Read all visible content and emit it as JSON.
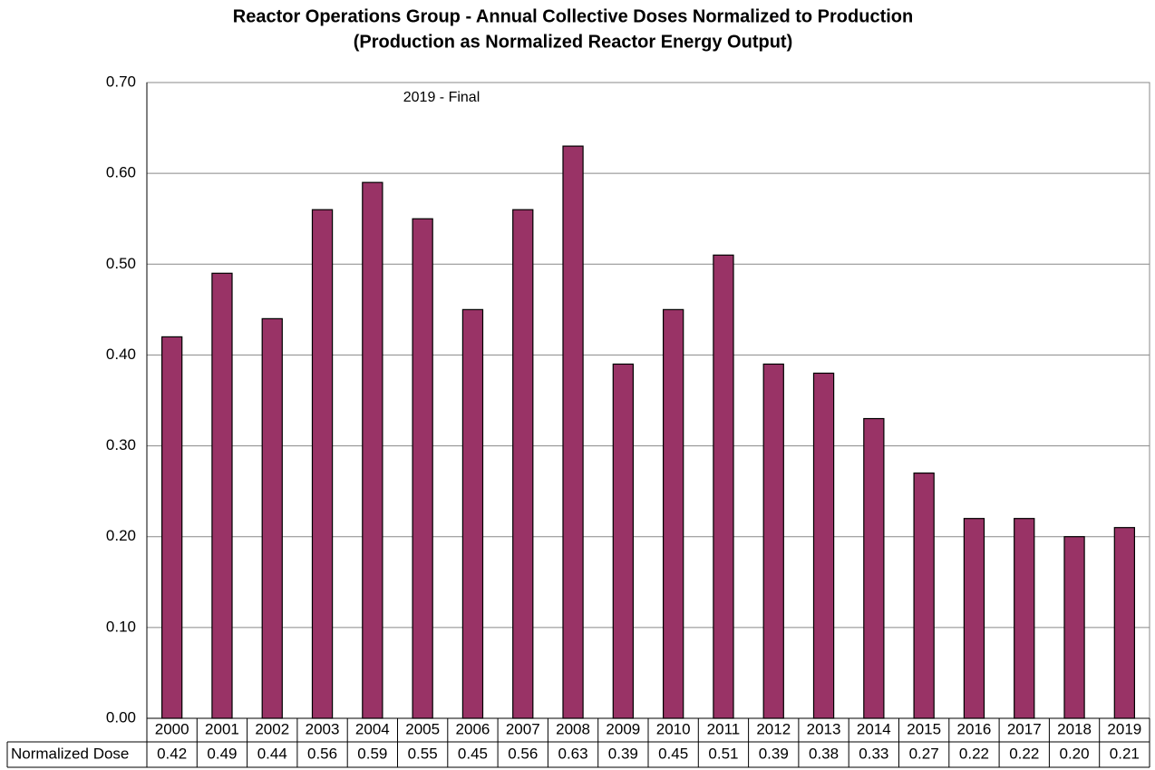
{
  "chart_data": {
    "type": "bar",
    "title": "Reactor Operations Group - Annual Collective Doses Normalized to Production",
    "subtitle": "(Production as Normalized Reactor Energy Output)",
    "annotation": "2019 - Final",
    "categories": [
      "2000",
      "2001",
      "2002",
      "2003",
      "2004",
      "2005",
      "2006",
      "2007",
      "2008",
      "2009",
      "2010",
      "2011",
      "2012",
      "2013",
      "2014",
      "2015",
      "2016",
      "2017",
      "2018",
      "2019"
    ],
    "series": [
      {
        "name": "Normalized Dose",
        "color": "#993366",
        "values": [
          0.42,
          0.49,
          0.44,
          0.56,
          0.59,
          0.55,
          0.45,
          0.56,
          0.63,
          0.39,
          0.45,
          0.51,
          0.39,
          0.38,
          0.33,
          0.27,
          0.22,
          0.22,
          0.2,
          0.21
        ],
        "value_labels": [
          "0.42",
          "0.49",
          "0.44",
          "0.56",
          "0.59",
          "0.55",
          "0.45",
          "0.56",
          "0.63",
          "0.39",
          "0.45",
          "0.51",
          "0.39",
          "0.38",
          "0.33",
          "0.27",
          "0.22",
          "0.22",
          "0.20",
          "0.21"
        ]
      }
    ],
    "ylim": [
      0,
      0.7
    ],
    "yticks": [
      {
        "value": 0,
        "label": "0.00"
      },
      {
        "value": 0.1,
        "label": "0.10"
      },
      {
        "value": 0.2,
        "label": "0.20"
      },
      {
        "value": 0.3,
        "label": "0.30"
      },
      {
        "value": 0.4,
        "label": "0.40"
      },
      {
        "value": 0.5,
        "label": "0.50"
      },
      {
        "value": 0.6,
        "label": "0.60"
      },
      {
        "value": 0.7,
        "label": "0.70"
      }
    ],
    "grid": true
  }
}
